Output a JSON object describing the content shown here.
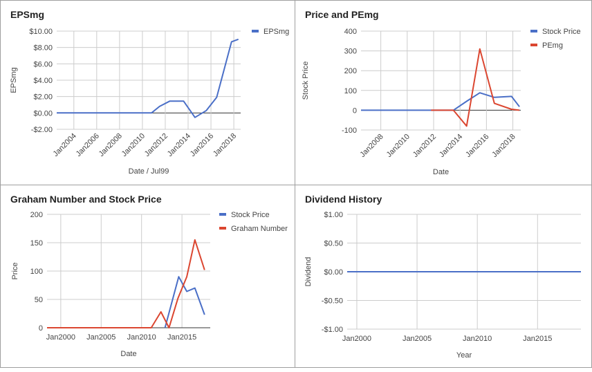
{
  "chart_data": [
    {
      "id": "eps",
      "type": "line",
      "title": "EPSmg",
      "xlabel": "Date / Jul99",
      "ylabel": "EPSmg",
      "ylim": [
        -2,
        10
      ],
      "xlim": [
        2002.5,
        2018.6
      ],
      "y_ticks": [
        -2,
        0,
        2,
        4,
        6,
        8,
        10
      ],
      "y_tick_labels": [
        "-$2.00",
        "$0.00",
        "$2.00",
        "$4.00",
        "$6.00",
        "$8.00",
        "$10.00"
      ],
      "x_ticks": [
        2004,
        2006,
        2008,
        2010,
        2012,
        2014,
        2016,
        2018
      ],
      "x_tick_labels": [
        "Jan2004",
        "Jan2006",
        "Jan2008",
        "Jan2010",
        "Jan2012",
        "Jan2014",
        "Jan2016",
        "Jan2018"
      ],
      "grid": true,
      "legend": "top-right",
      "series": [
        {
          "name": "EPSmg",
          "color": "#4a6fc7",
          "x": [
            2002.5,
            2010.8,
            2011.5,
            2012.4,
            2013.6,
            2014.6,
            2015.6,
            2016.5,
            2017.8,
            2018.4
          ],
          "y": [
            0,
            0,
            0.8,
            1.45,
            1.45,
            -0.55,
            0.3,
            1.9,
            8.7,
            9.0
          ]
        }
      ]
    },
    {
      "id": "pe",
      "type": "line",
      "title": "Price and PEmg",
      "xlabel": "Date",
      "ylabel": "Stock Price",
      "ylim": [
        -100,
        400
      ],
      "xlim": [
        2006.5,
        2018.6
      ],
      "y_ticks": [
        -100,
        0,
        100,
        200,
        300,
        400
      ],
      "y_tick_labels": [
        "-100",
        "0",
        "100",
        "200",
        "300",
        "400"
      ],
      "x_ticks": [
        2008,
        2010,
        2012,
        2014,
        2016,
        2018
      ],
      "x_tick_labels": [
        "Jan2008",
        "Jan2010",
        "Jan2012",
        "Jan2014",
        "Jan2016",
        "Jan2018"
      ],
      "grid": true,
      "legend": "top-right",
      "series": [
        {
          "name": "Stock Price",
          "color": "#4a6fc7",
          "x": [
            2006.5,
            2013.5,
            2014.5,
            2015.5,
            2016.6,
            2017.9,
            2018.5
          ],
          "y": [
            0,
            0,
            45,
            88,
            65,
            70,
            18
          ]
        },
        {
          "name": "PEmg",
          "color": "#db4630",
          "x": [
            2011.8,
            2013.5,
            2014.5,
            2015.5,
            2016.6,
            2017.9,
            2018.5
          ],
          "y": [
            0,
            0,
            -80,
            310,
            35,
            5,
            0
          ]
        }
      ]
    },
    {
      "id": "graham",
      "type": "line",
      "title": "Graham Number and Stock Price",
      "xlabel": "Date",
      "ylabel": "Price",
      "ylim": [
        0,
        200
      ],
      "xlim": [
        1998.3,
        2018.5
      ],
      "y_ticks": [
        0,
        50,
        100,
        150,
        200
      ],
      "y_tick_labels": [
        "0",
        "50",
        "100",
        "150",
        "200"
      ],
      "x_ticks": [
        2000,
        2005,
        2010,
        2015
      ],
      "x_tick_labels": [
        "Jan2000",
        "Jan2005",
        "Jan2010",
        "Jan2015"
      ],
      "grid": true,
      "legend": "top-right",
      "series": [
        {
          "name": "Stock Price",
          "color": "#4a6fc7",
          "x": [
            2012.9,
            2014.6,
            2015.6,
            2016.6,
            2017.8
          ],
          "y": [
            0,
            90,
            64,
            70,
            23
          ]
        },
        {
          "name": "Graham Number",
          "color": "#db4630",
          "x": [
            1998.3,
            2011.2,
            2012.4,
            2013.4,
            2014.5,
            2015.6,
            2016.6,
            2017.8
          ],
          "y": [
            0,
            0,
            28,
            0,
            52,
            90,
            155,
            102
          ]
        }
      ]
    },
    {
      "id": "dividend",
      "type": "line",
      "title": "Dividend History",
      "xlabel": "Year",
      "ylabel": "Dividend",
      "ylim": [
        -1,
        1
      ],
      "xlim": [
        1999.2,
        2018.6
      ],
      "y_ticks": [
        -1,
        -0.5,
        0,
        0.5,
        1
      ],
      "y_tick_labels": [
        "-$1.00",
        "-$0.50",
        "$0.00",
        "$0.50",
        "$1.00"
      ],
      "x_ticks": [
        2000,
        2005,
        2010,
        2015
      ],
      "x_tick_labels": [
        "Jan2000",
        "Jan2005",
        "Jan2010",
        "Jan2015"
      ],
      "grid": true,
      "legend": "none",
      "series": [
        {
          "color": "#4a6fc7",
          "x": [
            1999.2,
            2018.6
          ],
          "y": [
            0,
            0
          ]
        }
      ]
    }
  ]
}
